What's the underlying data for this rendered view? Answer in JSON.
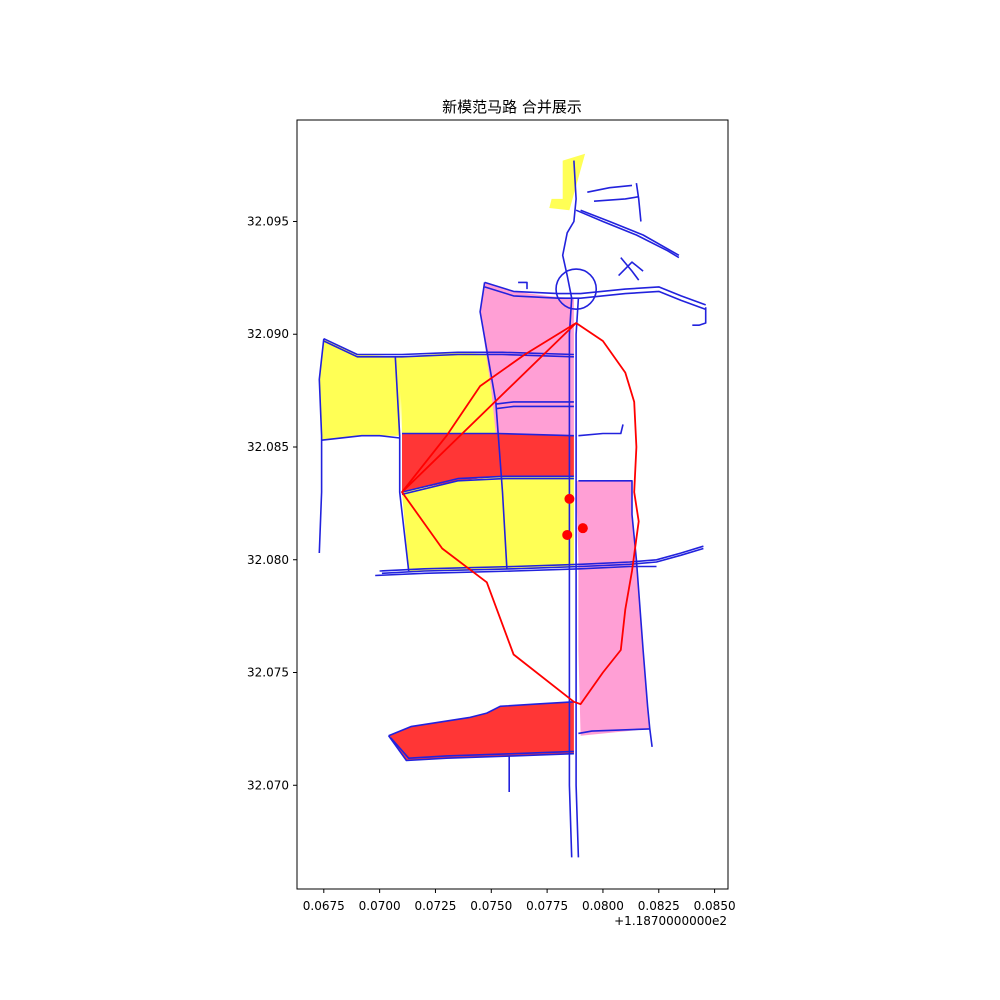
{
  "chart_data": {
    "type": "map",
    "title": "新模范马路 合并展示",
    "x_offset_label": "+1.1870000000e2",
    "x_offset": 118.7,
    "xlim": [
      0.0663,
      0.0856
    ],
    "ylim": [
      32.0654,
      32.0995
    ],
    "x_ticks": [
      0.0675,
      0.07,
      0.0725,
      0.075,
      0.0775,
      0.08,
      0.0825,
      0.085
    ],
    "x_tick_labels": [
      "0.0675",
      "0.0700",
      "0.0725",
      "0.0750",
      "0.0775",
      "0.0800",
      "0.0825",
      "0.0850"
    ],
    "y_ticks": [
      32.07,
      32.075,
      32.08,
      32.085,
      32.09,
      32.095
    ],
    "y_tick_labels": [
      "32.070",
      "32.075",
      "32.080",
      "32.085",
      "32.090",
      "32.095"
    ],
    "colors": {
      "yellow": "#ffff55",
      "pink": "#ff9fd5",
      "red": "#ff3636",
      "road": "#2222dd",
      "route": "#ff0000",
      "point": "#ff0000"
    },
    "polygons": [
      {
        "name": "north-yellow-sliver",
        "fill": "yellow",
        "points": [
          [
            0.0782,
            32.0977
          ],
          [
            0.0792,
            32.098
          ],
          [
            0.0785,
            32.0955
          ],
          [
            0.0776,
            32.0956
          ],
          [
            0.0777,
            32.096
          ],
          [
            0.0782,
            32.096
          ]
        ]
      },
      {
        "name": "yellow-west-block",
        "fill": "yellow",
        "points": [
          [
            0.0675,
            32.0898
          ],
          [
            0.069,
            32.0891
          ],
          [
            0.071,
            32.089
          ],
          [
            0.0709,
            32.0855
          ],
          [
            0.07,
            32.0855
          ],
          [
            0.0692,
            32.0855
          ],
          [
            0.0674,
            32.0853
          ],
          [
            0.0673,
            32.088
          ]
        ]
      },
      {
        "name": "yellow-mid-block",
        "fill": "yellow",
        "points": [
          [
            0.0709,
            32.089
          ],
          [
            0.0735,
            32.0892
          ],
          [
            0.0752,
            32.0891
          ],
          [
            0.0755,
            32.0856
          ],
          [
            0.0733,
            32.0856
          ],
          [
            0.071,
            32.0856
          ]
        ]
      },
      {
        "name": "pink-north-block",
        "fill": "pink",
        "points": [
          [
            0.0747,
            32.0923
          ],
          [
            0.076,
            32.0919
          ],
          [
            0.0775,
            32.0917
          ],
          [
            0.0787,
            32.0916
          ],
          [
            0.0787,
            32.0855
          ],
          [
            0.0752,
            32.0856
          ],
          [
            0.075,
            32.0875
          ],
          [
            0.0745,
            32.091
          ]
        ]
      },
      {
        "name": "red-north-block",
        "fill": "red",
        "points": [
          [
            0.071,
            32.0856
          ],
          [
            0.0733,
            32.0856
          ],
          [
            0.0753,
            32.0856
          ],
          [
            0.0787,
            32.0855
          ],
          [
            0.0787,
            32.0837
          ],
          [
            0.0756,
            32.0837
          ],
          [
            0.0735,
            32.0835
          ],
          [
            0.071,
            32.083
          ]
        ]
      },
      {
        "name": "yellow-south-block",
        "fill": "yellow",
        "points": [
          [
            0.071,
            32.083
          ],
          [
            0.0735,
            32.0835
          ],
          [
            0.0756,
            32.0837
          ],
          [
            0.0787,
            32.0837
          ],
          [
            0.0787,
            32.0797
          ],
          [
            0.0757,
            32.0796
          ],
          [
            0.0735,
            32.0795
          ],
          [
            0.0713,
            32.0795
          ]
        ]
      },
      {
        "name": "pink-east-block",
        "fill": "pink",
        "points": [
          [
            0.0788,
            32.0835
          ],
          [
            0.0813,
            32.0835
          ],
          [
            0.0813,
            32.082
          ],
          [
            0.0815,
            32.08
          ],
          [
            0.0818,
            32.076
          ],
          [
            0.082,
            32.0735
          ],
          [
            0.0821,
            32.0725
          ],
          [
            0.079,
            32.0722
          ],
          [
            0.0789,
            32.076
          ],
          [
            0.0789,
            32.08
          ]
        ]
      },
      {
        "name": "red-south-block",
        "fill": "red",
        "points": [
          [
            0.0704,
            32.0722
          ],
          [
            0.0714,
            32.0726
          ],
          [
            0.074,
            32.073
          ],
          [
            0.0748,
            32.0732
          ],
          [
            0.0754,
            32.0735
          ],
          [
            0.077,
            32.0736
          ],
          [
            0.0787,
            32.0737
          ],
          [
            0.0787,
            32.0714
          ],
          [
            0.076,
            32.0713
          ],
          [
            0.073,
            32.0712
          ],
          [
            0.0712,
            32.0711
          ]
        ]
      }
    ],
    "roads": [
      [
        [
          0.0787,
          32.0977
        ],
        [
          0.0788,
          32.096
        ],
        [
          0.0787,
          32.095
        ],
        [
          0.0784,
          32.0945
        ],
        [
          0.0782,
          32.0935
        ],
        [
          0.0784,
          32.0926
        ],
        [
          0.0786,
          32.0916
        ]
      ],
      [
        [
          0.0788,
          32.0955
        ],
        [
          0.08,
          32.095
        ],
        [
          0.0815,
          32.0944
        ],
        [
          0.0829,
          32.0937
        ],
        [
          0.0834,
          32.0934
        ]
      ],
      [
        [
          0.079,
          32.0955
        ],
        [
          0.0803,
          32.095
        ],
        [
          0.0818,
          32.0944
        ],
        [
          0.0834,
          32.0935
        ]
      ],
      [
        [
          0.0793,
          32.0963
        ],
        [
          0.0803,
          32.0965
        ],
        [
          0.0813,
          32.0966
        ]
      ],
      [
        [
          0.0796,
          32.0959
        ],
        [
          0.081,
          32.096
        ],
        [
          0.0816,
          32.0961
        ]
      ],
      [
        [
          0.0815,
          32.0967
        ],
        [
          0.0816,
          32.096
        ],
        [
          0.0817,
          32.095
        ]
      ],
      [
        [
          0.0807,
          32.0926
        ],
        [
          0.0813,
          32.0932
        ],
        [
          0.0818,
          32.0928
        ]
      ],
      [
        [
          0.0808,
          32.0934
        ],
        [
          0.0813,
          32.0928
        ],
        [
          0.0816,
          32.0924
        ]
      ],
      [
        [
          0.0747,
          32.0923
        ],
        [
          0.076,
          32.0919
        ],
        [
          0.078,
          32.0918
        ],
        [
          0.079,
          32.0918
        ],
        [
          0.081,
          32.092
        ],
        [
          0.0825,
          32.0921
        ],
        [
          0.0835,
          32.0917
        ],
        [
          0.0846,
          32.0913
        ]
      ],
      [
        [
          0.0747,
          32.0921
        ],
        [
          0.076,
          32.0917
        ],
        [
          0.078,
          32.0916
        ],
        [
          0.079,
          32.0916
        ],
        [
          0.081,
          32.0918
        ],
        [
          0.0825,
          32.0919
        ],
        [
          0.0835,
          32.0915
        ],
        [
          0.0846,
          32.0911
        ]
      ],
      [
        [
          0.0846,
          32.0912
        ],
        [
          0.0846,
          32.0905
        ],
        [
          0.0843,
          32.0904
        ],
        [
          0.084,
          32.0904
        ]
      ],
      [
        [
          0.0762,
          32.0923
        ],
        [
          0.0766,
          32.0923
        ],
        [
          0.0766,
          32.092
        ]
      ],
      [
        [
          0.0786,
          32.0916
        ],
        [
          0.0785,
          32.09
        ],
        [
          0.0785,
          32.085
        ],
        [
          0.0785,
          32.08
        ],
        [
          0.0785,
          32.075
        ],
        [
          0.0785,
          32.07
        ],
        [
          0.0786,
          32.0668
        ]
      ],
      [
        [
          0.0789,
          32.0916
        ],
        [
          0.0788,
          32.09
        ],
        [
          0.0788,
          32.085
        ],
        [
          0.0788,
          32.08
        ],
        [
          0.0788,
          32.075
        ],
        [
          0.0788,
          32.07
        ],
        [
          0.0789,
          32.0668
        ]
      ],
      [
        [
          0.0675,
          32.0898
        ],
        [
          0.069,
          32.0891
        ],
        [
          0.071,
          32.0891
        ],
        [
          0.0735,
          32.0892
        ],
        [
          0.0755,
          32.0892
        ],
        [
          0.0787,
          32.0891
        ]
      ],
      [
        [
          0.0675,
          32.0897
        ],
        [
          0.069,
          32.089
        ],
        [
          0.071,
          32.089
        ],
        [
          0.0735,
          32.0891
        ],
        [
          0.0755,
          32.0891
        ],
        [
          0.0787,
          32.089
        ]
      ],
      [
        [
          0.0675,
          32.0898
        ],
        [
          0.0673,
          32.088
        ],
        [
          0.0674,
          32.0855
        ],
        [
          0.0674,
          32.083
        ],
        [
          0.0673,
          32.0803
        ]
      ],
      [
        [
          0.0674,
          32.0853
        ],
        [
          0.0692,
          32.0855
        ],
        [
          0.07,
          32.0855
        ],
        [
          0.0709,
          32.0854
        ]
      ],
      [
        [
          0.0707,
          32.089
        ],
        [
          0.0709,
          32.0855
        ],
        [
          0.0709,
          32.083
        ],
        [
          0.0713,
          32.0795
        ]
      ],
      [
        [
          0.0747,
          32.0923
        ],
        [
          0.0745,
          32.091
        ],
        [
          0.0752,
          32.087
        ],
        [
          0.0755,
          32.083
        ],
        [
          0.0757,
          32.0796
        ]
      ],
      [
        [
          0.071,
          32.0856
        ],
        [
          0.0733,
          32.0856
        ],
        [
          0.0753,
          32.0856
        ],
        [
          0.0787,
          32.0855
        ]
      ],
      [
        [
          0.0752,
          32.0869
        ],
        [
          0.076,
          32.087
        ],
        [
          0.0775,
          32.087
        ],
        [
          0.0787,
          32.087
        ]
      ],
      [
        [
          0.0752,
          32.0867
        ],
        [
          0.076,
          32.0868
        ],
        [
          0.0775,
          32.0868
        ],
        [
          0.0787,
          32.0868
        ]
      ],
      [
        [
          0.0789,
          32.0855
        ],
        [
          0.08,
          32.0856
        ],
        [
          0.0808,
          32.0856
        ],
        [
          0.0809,
          32.086
        ]
      ],
      [
        [
          0.071,
          32.083
        ],
        [
          0.0735,
          32.0836
        ],
        [
          0.0756,
          32.0837
        ],
        [
          0.0787,
          32.0837
        ]
      ],
      [
        [
          0.071,
          32.0829
        ],
        [
          0.0735,
          32.0835
        ],
        [
          0.0756,
          32.0836
        ],
        [
          0.0787,
          32.0836
        ]
      ],
      [
        [
          0.0789,
          32.0835
        ],
        [
          0.0813,
          32.0835
        ],
        [
          0.0813,
          32.082
        ],
        [
          0.0815,
          32.08
        ],
        [
          0.0818,
          32.076
        ],
        [
          0.082,
          32.0735
        ],
        [
          0.0821,
          32.0725
        ],
        [
          0.0822,
          32.0717
        ]
      ],
      [
        [
          0.0789,
          32.0723
        ],
        [
          0.0795,
          32.0724
        ],
        [
          0.0821,
          32.0725
        ]
      ],
      [
        [
          0.07,
          32.0795
        ],
        [
          0.072,
          32.0796
        ],
        [
          0.076,
          32.0797
        ],
        [
          0.079,
          32.0798
        ],
        [
          0.0812,
          32.0799
        ],
        [
          0.0824,
          32.08
        ],
        [
          0.0835,
          32.0803
        ],
        [
          0.0845,
          32.0806
        ]
      ],
      [
        [
          0.0701,
          32.0794
        ],
        [
          0.072,
          32.0795
        ],
        [
          0.076,
          32.0796
        ],
        [
          0.079,
          32.0797
        ],
        [
          0.0812,
          32.0798
        ],
        [
          0.0824,
          32.0799
        ],
        [
          0.0835,
          32.0802
        ],
        [
          0.0845,
          32.0805
        ]
      ],
      [
        [
          0.0698,
          32.0793
        ],
        [
          0.072,
          32.0794
        ],
        [
          0.076,
          32.0795
        ],
        [
          0.079,
          32.0796
        ],
        [
          0.0812,
          32.0797
        ],
        [
          0.0824,
          32.0797
        ]
      ],
      [
        [
          0.0704,
          32.0722
        ],
        [
          0.0714,
          32.0726
        ],
        [
          0.074,
          32.073
        ],
        [
          0.0748,
          32.0732
        ],
        [
          0.0754,
          32.0735
        ],
        [
          0.077,
          32.0736
        ],
        [
          0.0787,
          32.0737
        ]
      ],
      [
        [
          0.0704,
          32.0722
        ],
        [
          0.0712,
          32.0711
        ],
        [
          0.073,
          32.0712
        ],
        [
          0.076,
          32.0713
        ],
        [
          0.0787,
          32.0714
        ]
      ],
      [
        [
          0.0705,
          32.0721
        ],
        [
          0.0713,
          32.0712
        ],
        [
          0.073,
          32.0713
        ],
        [
          0.076,
          32.0714
        ],
        [
          0.0787,
          32.0715
        ]
      ],
      [
        [
          0.0758,
          32.0713
        ],
        [
          0.0758,
          32.0697
        ]
      ]
    ],
    "roundabout": {
      "center": [
        0.0788,
        32.092
      ],
      "radius": 0.0009
    },
    "route": [
      [
        0.0788,
        32.0905
      ],
      [
        0.0765,
        32.0891
      ],
      [
        0.0745,
        32.0877
      ],
      [
        0.073,
        32.0855
      ],
      [
        0.071,
        32.083
      ],
      [
        0.0788,
        32.0905
      ],
      [
        0.08,
        32.0897
      ],
      [
        0.081,
        32.0883
      ],
      [
        0.0814,
        32.087
      ],
      [
        0.0815,
        32.085
      ],
      [
        0.0814,
        32.083
      ],
      [
        0.0816,
        32.0817
      ],
      [
        0.0813,
        32.0795
      ],
      [
        0.081,
        32.0778
      ],
      [
        0.0808,
        32.076
      ],
      [
        0.08,
        32.075
      ],
      [
        0.079,
        32.0736
      ],
      [
        0.0787,
        32.0737
      ],
      [
        0.076,
        32.0758
      ],
      [
        0.0748,
        32.079
      ],
      [
        0.0728,
        32.0805
      ],
      [
        0.071,
        32.083
      ]
    ],
    "points": [
      [
        0.0785,
        32.0827
      ],
      [
        0.0791,
        32.0814
      ],
      [
        0.0784,
        32.0811
      ]
    ]
  }
}
